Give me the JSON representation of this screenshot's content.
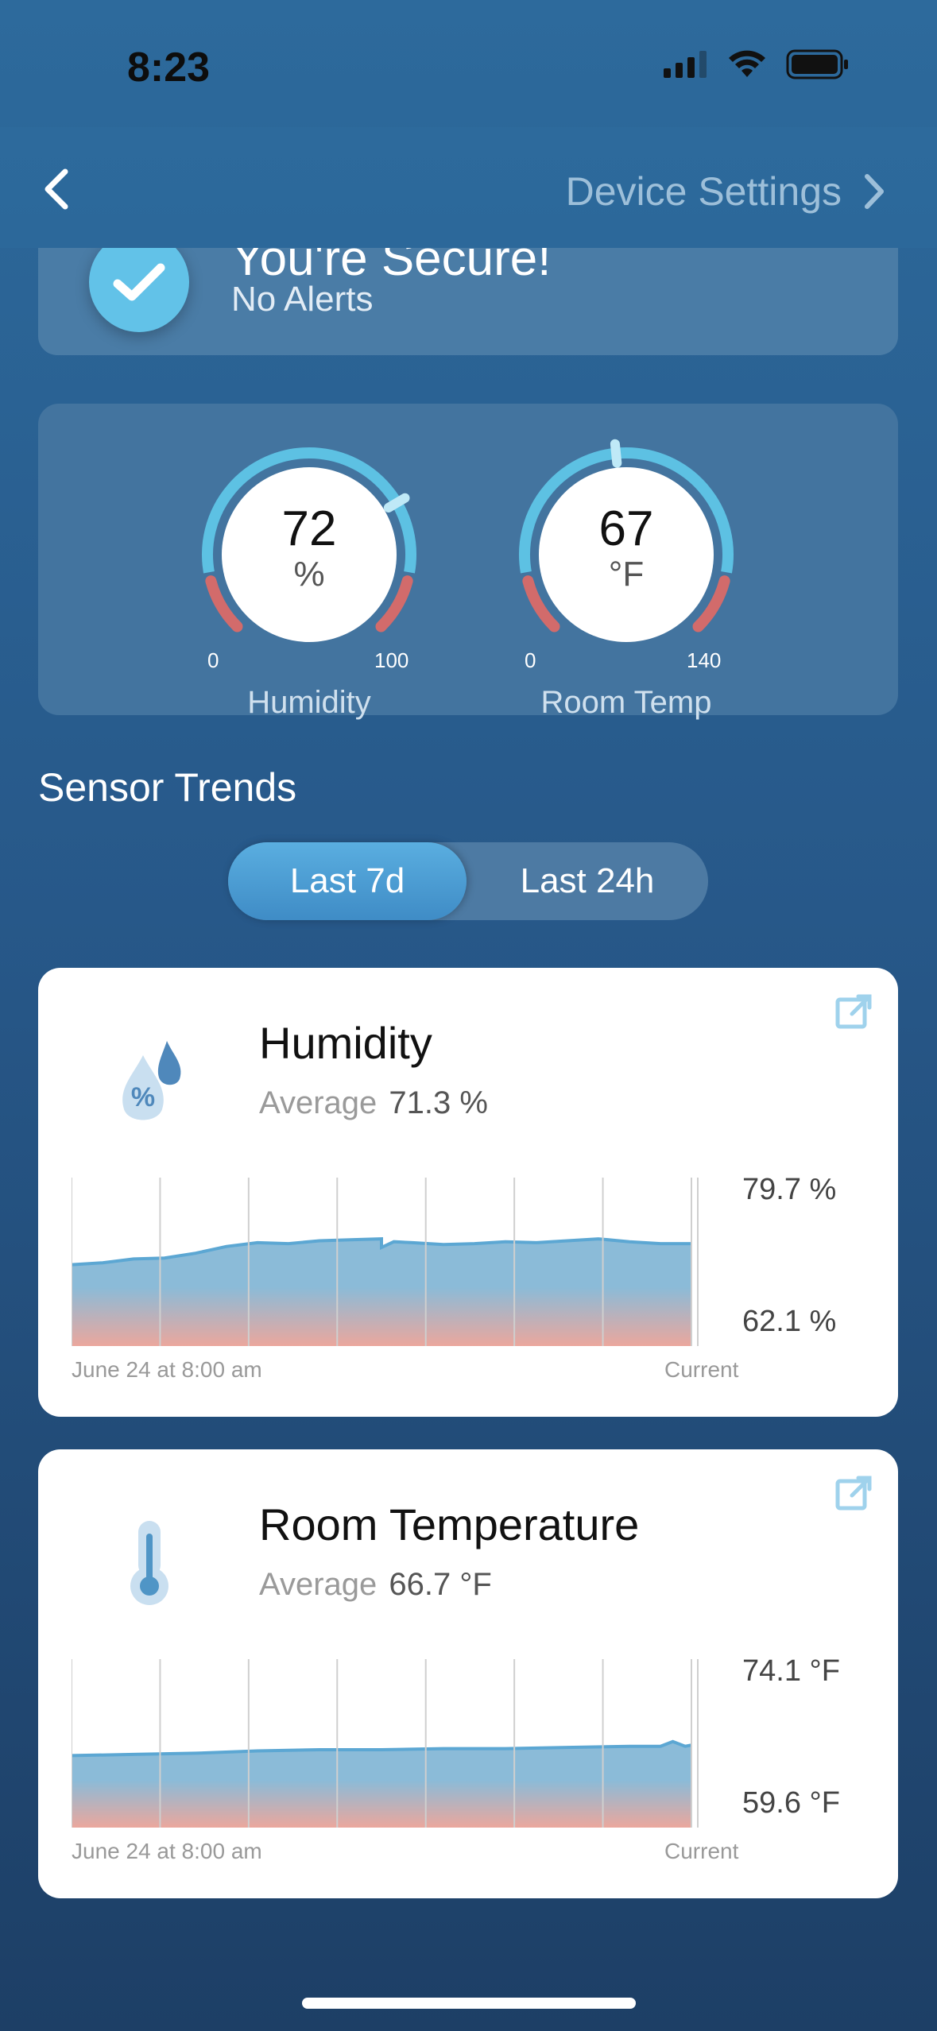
{
  "status_bar": {
    "time": "8:23"
  },
  "nav": {
    "right_label": "Device Settings"
  },
  "secure": {
    "title": "You're Secure!",
    "subtitle": "No Alerts"
  },
  "gauges": [
    {
      "value": "72",
      "unit": "%",
      "min": "0",
      "max": "100",
      "label": "Humidity",
      "fraction": 0.72
    },
    {
      "value": "67",
      "unit": "°F",
      "min": "0",
      "max": "140",
      "label": "Room Temp",
      "fraction": 0.4786
    }
  ],
  "trends": {
    "title": "Sensor Trends",
    "tabs": [
      "Last 7d",
      "Last 24h"
    ],
    "active_tab": "Last 7d"
  },
  "cards": [
    {
      "title": "Humidity",
      "avg_label": "Average",
      "avg_value": "71.3 %",
      "y_max": "79.7 %",
      "y_min": "62.1 %",
      "x_start": "June 24 at 8:00 am",
      "x_end": "Current",
      "icon": "humidity-drop-icon"
    },
    {
      "title": "Room Temperature",
      "avg_label": "Average",
      "avg_value": "66.7 °F",
      "y_max": "74.1 °F",
      "y_min": "59.6 °F",
      "x_start": "June 24 at 8:00 am",
      "x_end": "Current",
      "icon": "thermometer-icon"
    }
  ],
  "chart_data": [
    {
      "type": "area",
      "title": "Humidity",
      "ylim": [
        62.1,
        79.7
      ],
      "x": [
        0,
        0.05,
        0.1,
        0.15,
        0.2,
        0.25,
        0.3,
        0.35,
        0.4,
        0.45,
        0.5,
        0.5,
        0.52,
        0.55,
        0.6,
        0.65,
        0.7,
        0.75,
        0.8,
        0.85,
        0.9,
        0.95,
        1.0
      ],
      "values": [
        70.6,
        70.8,
        71.2,
        71.3,
        71.8,
        72.5,
        72.9,
        72.8,
        73.1,
        73.2,
        73.3,
        72.4,
        73.0,
        72.9,
        72.7,
        72.8,
        73.0,
        72.9,
        73.1,
        73.3,
        73.0,
        72.8,
        72.8
      ]
    },
    {
      "type": "area",
      "title": "Room Temperature",
      "ylim": [
        59.6,
        74.1
      ],
      "x": [
        0,
        0.1,
        0.2,
        0.3,
        0.4,
        0.5,
        0.6,
        0.7,
        0.8,
        0.9,
        0.95,
        0.97,
        0.99,
        1.0
      ],
      "values": [
        65.8,
        65.9,
        66.0,
        66.2,
        66.3,
        66.3,
        66.4,
        66.4,
        66.5,
        66.6,
        66.6,
        67.0,
        66.6,
        66.7
      ]
    }
  ]
}
